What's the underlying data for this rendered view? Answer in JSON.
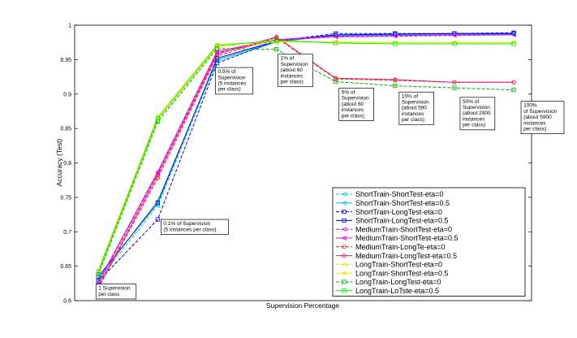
{
  "chart_data": {
    "type": "line",
    "title": "",
    "xlabel": "Supervision Percentage",
    "ylabel": "Accuracy (Test)",
    "x": [
      1,
      2,
      3,
      4,
      5,
      6,
      7,
      8
    ],
    "xlim": [
      0.6,
      8.3
    ],
    "ylim": [
      0.6,
      1.0
    ],
    "y_ticks": [
      0.6,
      0.65,
      0.7,
      0.75,
      0.8,
      0.85,
      0.9,
      0.95,
      1.0
    ],
    "y_tick_labels": [
      "0.6",
      "0.65",
      "0.7",
      "0.75",
      "0.8",
      "0.85",
      "0.9",
      "0.95",
      "1"
    ],
    "grid": false,
    "legend_position": "lower-right",
    "series": [
      {
        "name": "ShortTrain-ShortTest-eta=0",
        "color": "#00c8c8",
        "dash": "dashed",
        "marker": "triangle-left",
        "values": [
          0.63,
          0.738,
          0.948,
          0.975,
          0.986,
          0.987,
          0.988,
          0.988
        ]
      },
      {
        "name": "ShortTrain-ShortTest-eta=0.5",
        "color": "#00c8c8",
        "dash": "solid",
        "marker": "triangle-left",
        "values": [
          0.632,
          0.745,
          0.95,
          0.976,
          0.985,
          0.986,
          0.987,
          0.987
        ]
      },
      {
        "name": "ShortTrain-LongTest-eta=0",
        "color": "#0000ee",
        "dash": "dashed",
        "marker": "square",
        "values": [
          0.628,
          0.718,
          0.945,
          0.977,
          0.988,
          0.988,
          0.988,
          0.989
        ]
      },
      {
        "name": "ShortTrain-LongTest-eta=0.5",
        "color": "#0000ee",
        "dash": "solid",
        "marker": "square",
        "values": [
          0.635,
          0.742,
          0.952,
          0.977,
          0.986,
          0.987,
          0.988,
          0.988
        ]
      },
      {
        "name": "MediumTrain-ShortTest-eta=0",
        "color": "#ee00ee",
        "dash": "dashed",
        "marker": "triangle-left",
        "values": [
          0.625,
          0.785,
          0.96,
          0.978,
          0.983,
          0.984,
          0.985,
          0.986
        ]
      },
      {
        "name": "MediumTrain-ShortTest-eta=0.5",
        "color": "#ee00ee",
        "dash": "solid",
        "marker": "triangle-left",
        "values": [
          0.627,
          0.787,
          0.962,
          0.979,
          0.984,
          0.985,
          0.986,
          0.986
        ]
      },
      {
        "name": "MediumTrain-LongTe-eta=0",
        "color": "#ee2020",
        "dash": "dashed",
        "marker": "circle",
        "values": [
          0.618,
          0.778,
          0.955,
          0.982,
          0.922,
          0.92,
          0.917,
          0.917
        ]
      },
      {
        "name": "MediumTrain-LongTest-eta=0.5",
        "color": "#ee2060",
        "dash": "solid",
        "marker": "circle",
        "values": [
          0.62,
          0.782,
          0.958,
          0.983,
          0.923,
          0.921,
          0.917,
          0.917
        ]
      },
      {
        "name": "LongTrain-ShortTest-eta=0",
        "color": "#e8e800",
        "dash": "dashed",
        "marker": "triangle-left",
        "values": [
          0.64,
          0.862,
          0.968,
          0.975,
          0.976,
          0.975,
          0.975,
          0.975
        ]
      },
      {
        "name": "LongTrain-ShortTest-eta=0.5",
        "color": "#e8e800",
        "dash": "solid",
        "marker": "triangle-left",
        "values": [
          0.645,
          0.868,
          0.972,
          0.976,
          0.975,
          0.975,
          0.975,
          0.975
        ]
      },
      {
        "name": "LongTrain-LongTest-eta=0",
        "color": "#00b000",
        "dash": "dashed",
        "marker": "square",
        "values": [
          0.638,
          0.86,
          0.966,
          0.965,
          0.918,
          0.912,
          0.909,
          0.906
        ]
      },
      {
        "name": "LongTrain-LoTste-eta=0.5",
        "color": "#00ee00",
        "dash": "solid",
        "marker": "square",
        "values": [
          0.642,
          0.865,
          0.97,
          0.978,
          0.974,
          0.973,
          0.973,
          0.973
        ]
      }
    ],
    "annotations": [
      {
        "x": 1,
        "y": 0.613,
        "lines": [
          "1 Supervision",
          "per class"
        ]
      },
      {
        "x": 2,
        "y": 0.725,
        "lines": [
          "0.1% of Supervision",
          "(5 instances per class)"
        ]
      },
      {
        "x": 3,
        "y": 0.948,
        "lines": [
          "0.5% of",
          "Supervision",
          "(5 instances",
          "per class)"
        ]
      },
      {
        "x": 4,
        "y": 0.972,
        "lines": [
          "1% of",
          "Supervision",
          "(about 60",
          "instances",
          "per class)"
        ]
      },
      {
        "x": 5,
        "y": 0.918,
        "lines": [
          "5% of",
          "Supervision",
          "(about 60",
          "instances",
          "per class)"
        ]
      },
      {
        "x": 6,
        "y": 0.91,
        "lines": [
          "10% of",
          "Supervision",
          "(about 590",
          "instances",
          "per class)"
        ]
      },
      {
        "x": 7,
        "y": 0.907,
        "lines": [
          "50% of",
          "Supervision",
          "(about 2900",
          "instances",
          "per class)"
        ]
      },
      {
        "x": 8,
        "y": 0.906,
        "lines": [
          "100%",
          "of Supervision",
          "(about 5900",
          "instances",
          "per class)"
        ]
      }
    ]
  }
}
